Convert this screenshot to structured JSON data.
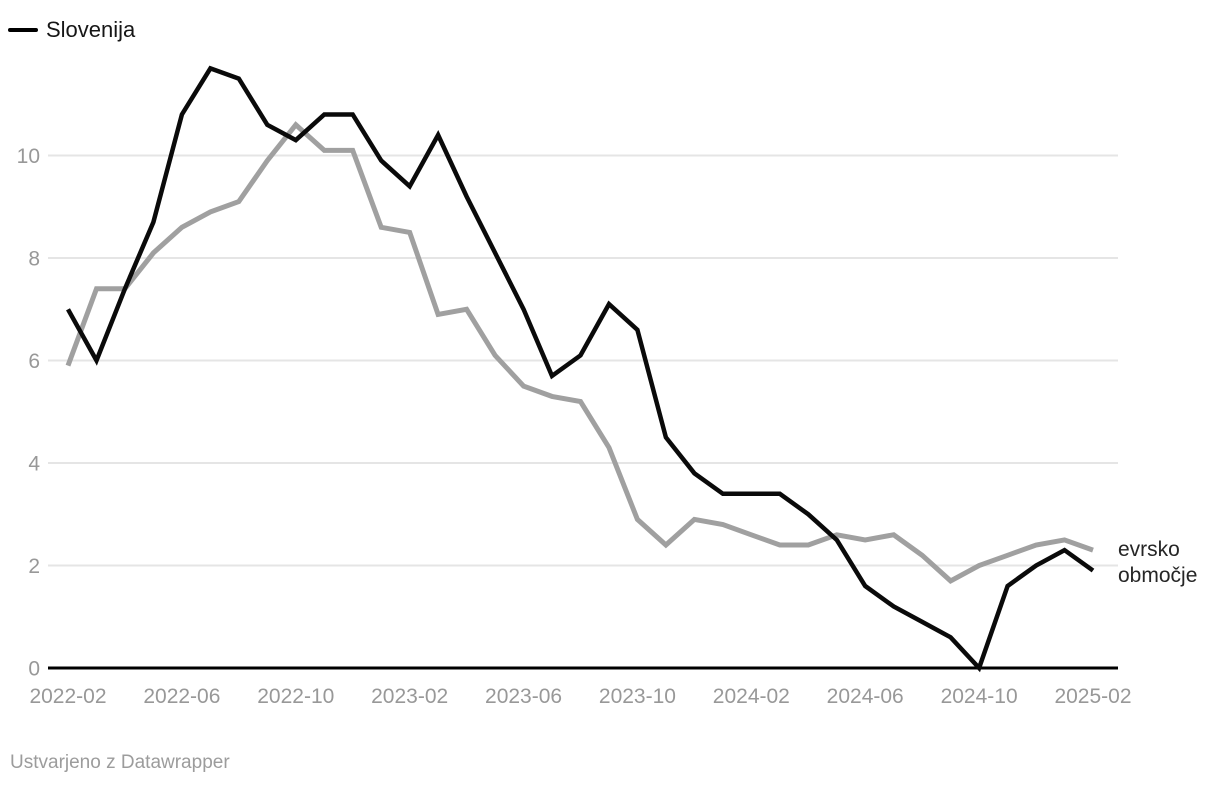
{
  "legend": {
    "items": [
      {
        "label": "Slovenija",
        "color": "#000000"
      }
    ]
  },
  "direct_label": {
    "text": "evrsko območje",
    "color": "#262626"
  },
  "footer": {
    "text": "Ustvarjeno z Datawrapper"
  },
  "colors": {
    "grid": "#e5e5e5",
    "baseline": "#000000",
    "axis_text": "#989898",
    "slovenija_line": "#0a0a0a",
    "euro_area_line": "#a0a0a0"
  },
  "chart_data": {
    "type": "line",
    "title": "",
    "xlabel": "",
    "ylabel": "",
    "x": [
      "2022-02",
      "2022-03",
      "2022-04",
      "2022-05",
      "2022-06",
      "2022-07",
      "2022-08",
      "2022-09",
      "2022-10",
      "2022-11",
      "2022-12",
      "2023-01",
      "2023-02",
      "2023-03",
      "2023-04",
      "2023-05",
      "2023-06",
      "2023-07",
      "2023-08",
      "2023-09",
      "2023-10",
      "2023-11",
      "2023-12",
      "2024-01",
      "2024-02",
      "2024-03",
      "2024-04",
      "2024-05",
      "2024-06",
      "2024-07",
      "2024-08",
      "2024-09",
      "2024-10",
      "2024-11",
      "2024-12",
      "2025-01",
      "2025-02"
    ],
    "series": [
      {
        "name": "Slovenija",
        "color": "#0a0a0a",
        "stroke_width": 4.5,
        "values": [
          7.0,
          6.0,
          7.4,
          8.7,
          10.8,
          11.7,
          11.5,
          10.6,
          10.3,
          10.8,
          10.8,
          9.9,
          9.4,
          10.4,
          9.2,
          8.1,
          7.0,
          5.7,
          6.1,
          7.1,
          6.6,
          4.5,
          3.8,
          3.4,
          3.4,
          3.4,
          3.0,
          2.5,
          1.6,
          1.2,
          0.9,
          0.6,
          0.0,
          1.6,
          2.0,
          2.3,
          1.9
        ]
      },
      {
        "name": "evrsko območje",
        "color": "#a0a0a0",
        "stroke_width": 5,
        "values": [
          5.9,
          7.4,
          7.4,
          8.1,
          8.6,
          8.9,
          9.1,
          9.9,
          10.6,
          10.1,
          10.1,
          8.6,
          8.5,
          6.9,
          7.0,
          6.1,
          5.5,
          5.3,
          5.2,
          4.3,
          2.9,
          2.4,
          2.9,
          2.8,
          2.6,
          2.4,
          2.4,
          2.6,
          2.5,
          2.6,
          2.2,
          1.7,
          2.0,
          2.2,
          2.4,
          2.5,
          2.3
        ]
      }
    ],
    "x_tick_labels": [
      "2022-02",
      "2022-06",
      "2022-10",
      "2023-02",
      "2023-06",
      "2023-10",
      "2024-02",
      "2024-06",
      "2024-10",
      "2025-02"
    ],
    "x_tick_step": 4,
    "y_ticks": [
      0,
      2,
      4,
      6,
      8,
      10
    ],
    "ylim": [
      0,
      12
    ],
    "grid": "horizontal",
    "legend_position": "top-left",
    "direct_label_series": "evrsko območje"
  }
}
